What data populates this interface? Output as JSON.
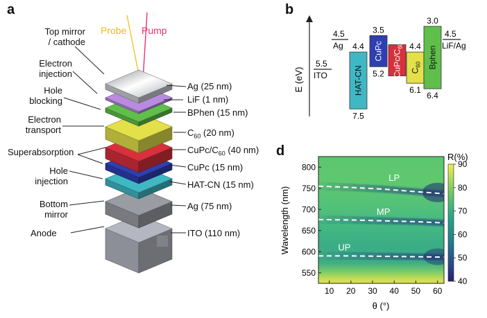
{
  "panel_a": {
    "letter": "a",
    "probe": "Probe",
    "pump": "Pump",
    "left_labels": {
      "top_mirror": "Top mirror\n/ cathode",
      "electron_injection": "Electron\ninjection",
      "hole_blocking": "Hole\nblocking",
      "electron_transport": "Electron\ntransport",
      "superabsorption": "Superabsorption",
      "hole_injection": "Hole\ninjection",
      "bottom_mirror": "Bottom\nmirror",
      "anode": "Anode"
    },
    "layers": [
      {
        "label": "Ag (25 nm)",
        "color": "#c9ccd3"
      },
      {
        "label": "LiF (1 nm)",
        "color": "#b98be0"
      },
      {
        "label": "BPhen (15 nm)",
        "color": "#5fbf4a"
      },
      {
        "label": "C60 (20 nm)",
        "color": "#e3e04a"
      },
      {
        "label": "CuPc/C60 (40 nm)",
        "color": "#d8303c"
      },
      {
        "label": "CuPc (15 nm)",
        "color": "#2e3fb2"
      },
      {
        "label": "HAT-CN (15 nm)",
        "color": "#3fb8c4"
      },
      {
        "label": "Ag (75 nm)",
        "color": "#9a9ca3"
      },
      {
        "label": "ITO (110 nm)",
        "color": "#b4b7c2"
      }
    ],
    "probe_color": "#f2c12e",
    "pump_color": "#e8336a"
  },
  "panel_b": {
    "letter": "b",
    "axis_label": "E (eV)",
    "ito": {
      "name": "ITO",
      "value": "5.5"
    },
    "ag": {
      "name": "Ag",
      "value": "4.5"
    },
    "lif": {
      "name": "LiF/Ag",
      "value": "4.5"
    },
    "bars": [
      {
        "name": "HAT-CN",
        "top": "4.4",
        "bottom": "7.5",
        "color": "#3fb8c4"
      },
      {
        "name": "CuPc",
        "top": "3.5",
        "bottom": "5.2",
        "color": "#2e3fb2"
      },
      {
        "name": "CuPc/C60",
        "top": "",
        "bottom": "",
        "color": "#d8303c"
      },
      {
        "name": "C60",
        "top": "4.4",
        "bottom": "6.1",
        "color": "#e3e04a"
      },
      {
        "name": "Bphen",
        "top": "3.0",
        "bottom": "6.4",
        "color": "#5fbf4a"
      }
    ]
  },
  "panel_d": {
    "letter": "d",
    "ylabel": "Wavelength (nm)",
    "xlabel": "θ (°)",
    "colorbar_label": "R(%)",
    "colorbar_ticks": [
      "90",
      "80",
      "70",
      "60",
      "50",
      "40"
    ],
    "branches": [
      "LP",
      "MP",
      "UP"
    ]
  },
  "chart_data": {
    "type": "heatmap",
    "xlabel": "θ (°)",
    "ylabel": "Wavelength (nm)",
    "colorbar_label": "R(%)",
    "x_ticks": [
      10,
      20,
      30,
      40,
      50,
      60
    ],
    "y_ticks": [
      550,
      600,
      650,
      700,
      750,
      800
    ],
    "xlim": [
      5,
      63
    ],
    "ylim": [
      525,
      825
    ],
    "clim": [
      40,
      90
    ],
    "series": [
      {
        "name": "LP",
        "x": [
          5,
          20,
          35,
          50,
          63
        ],
        "y": [
          755,
          752,
          748,
          742,
          737
        ]
      },
      {
        "name": "MP",
        "x": [
          5,
          20,
          35,
          50,
          63
        ],
        "y": [
          676,
          675,
          673,
          671,
          668
        ]
      },
      {
        "name": "UP",
        "x": [
          5,
          20,
          35,
          50,
          63
        ],
        "y": [
          590,
          590,
          589,
          588,
          587
        ]
      }
    ]
  }
}
